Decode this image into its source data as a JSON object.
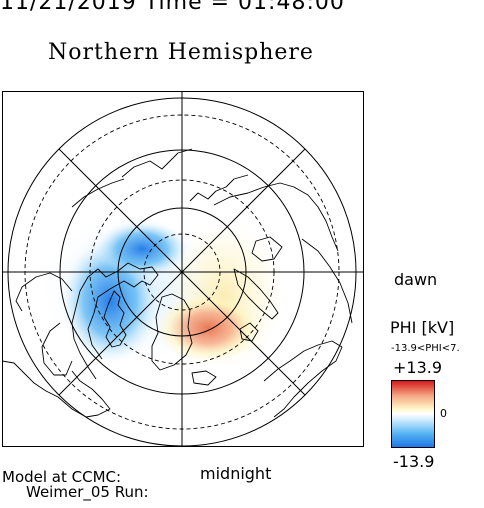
{
  "header": {
    "datetime": "11/21/2019 Time = 01:48:00",
    "hemisphere": "Northern Hemisphere"
  },
  "map": {
    "orientation": {
      "right": "dawn",
      "bottom": "midnight"
    },
    "potential_pattern": {
      "negative_cell": "dusk side, blue",
      "positive_cell": "dawn/midnight side, red-orange"
    }
  },
  "colorbar": {
    "title": "PHI [kV]",
    "range": "-13.9<PHI<7.",
    "max_label": "+13.9",
    "zero_label": "0",
    "min_label": "-13.9",
    "colors": {
      "max": "#d7191c",
      "mid": "#ffffff",
      "min": "#1e78e6"
    }
  },
  "footer": {
    "model_label": "Model at CCMC:",
    "run_label": "Weimer_05 Run:"
  }
}
